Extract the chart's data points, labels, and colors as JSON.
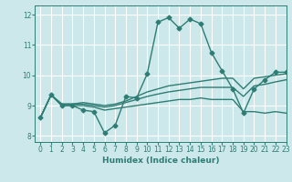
{
  "title": "",
  "xlabel": "Humidex (Indice chaleur)",
  "ylabel": "",
  "bg_color": "#cce8ea",
  "grid_color": "#ffffff",
  "line_color": "#2e7d74",
  "xlim": [
    -0.5,
    23
  ],
  "ylim": [
    7.8,
    12.3
  ],
  "xticks": [
    0,
    1,
    2,
    3,
    4,
    5,
    6,
    7,
    8,
    9,
    10,
    11,
    12,
    13,
    14,
    15,
    16,
    17,
    18,
    19,
    20,
    21,
    22,
    23
  ],
  "yticks": [
    8,
    9,
    10,
    11,
    12
  ],
  "lines": [
    {
      "x": [
        0,
        1,
        2,
        3,
        4,
        5,
        6,
        7,
        8,
        9,
        10,
        11,
        12,
        13,
        14,
        15,
        16,
        17,
        18,
        19,
        20,
        21,
        22,
        23
      ],
      "y": [
        8.6,
        9.35,
        9.0,
        9.0,
        8.85,
        8.8,
        8.1,
        8.35,
        9.3,
        9.25,
        10.05,
        11.75,
        11.9,
        11.55,
        11.85,
        11.7,
        10.75,
        10.15,
        9.55,
        8.75,
        9.55,
        9.85,
        10.1,
        10.1
      ],
      "marker": "D",
      "markersize": 2.5,
      "linewidth": 1.0
    },
    {
      "x": [
        0,
        1,
        2,
        3,
        4,
        5,
        6,
        7,
        8,
        9,
        10,
        11,
        12,
        13,
        14,
        15,
        16,
        17,
        18,
        19,
        20,
        21,
        22,
        23
      ],
      "y": [
        8.6,
        9.35,
        9.05,
        9.05,
        9.1,
        9.05,
        9.0,
        9.05,
        9.15,
        9.3,
        9.45,
        9.55,
        9.65,
        9.7,
        9.75,
        9.8,
        9.85,
        9.9,
        9.9,
        9.55,
        9.9,
        9.95,
        10.0,
        10.05
      ],
      "marker": null,
      "markersize": 0,
      "linewidth": 1.0
    },
    {
      "x": [
        0,
        1,
        2,
        3,
        4,
        5,
        6,
        7,
        8,
        9,
        10,
        11,
        12,
        13,
        14,
        15,
        16,
        17,
        18,
        19,
        20,
        21,
        22,
        23
      ],
      "y": [
        8.6,
        9.35,
        9.05,
        9.05,
        9.05,
        9.0,
        8.95,
        9.0,
        9.1,
        9.2,
        9.3,
        9.38,
        9.45,
        9.5,
        9.55,
        9.6,
        9.6,
        9.6,
        9.6,
        9.3,
        9.65,
        9.7,
        9.78,
        9.85
      ],
      "marker": null,
      "markersize": 0,
      "linewidth": 1.0
    },
    {
      "x": [
        0,
        1,
        2,
        3,
        4,
        5,
        6,
        7,
        8,
        9,
        10,
        11,
        12,
        13,
        14,
        15,
        16,
        17,
        18,
        19,
        20,
        21,
        22,
        23
      ],
      "y": [
        8.6,
        9.35,
        9.0,
        9.0,
        9.0,
        8.95,
        8.85,
        8.9,
        8.95,
        9.0,
        9.05,
        9.1,
        9.15,
        9.2,
        9.2,
        9.25,
        9.2,
        9.2,
        9.2,
        8.8,
        8.8,
        8.75,
        8.8,
        8.75
      ],
      "marker": null,
      "markersize": 0,
      "linewidth": 1.0
    }
  ]
}
